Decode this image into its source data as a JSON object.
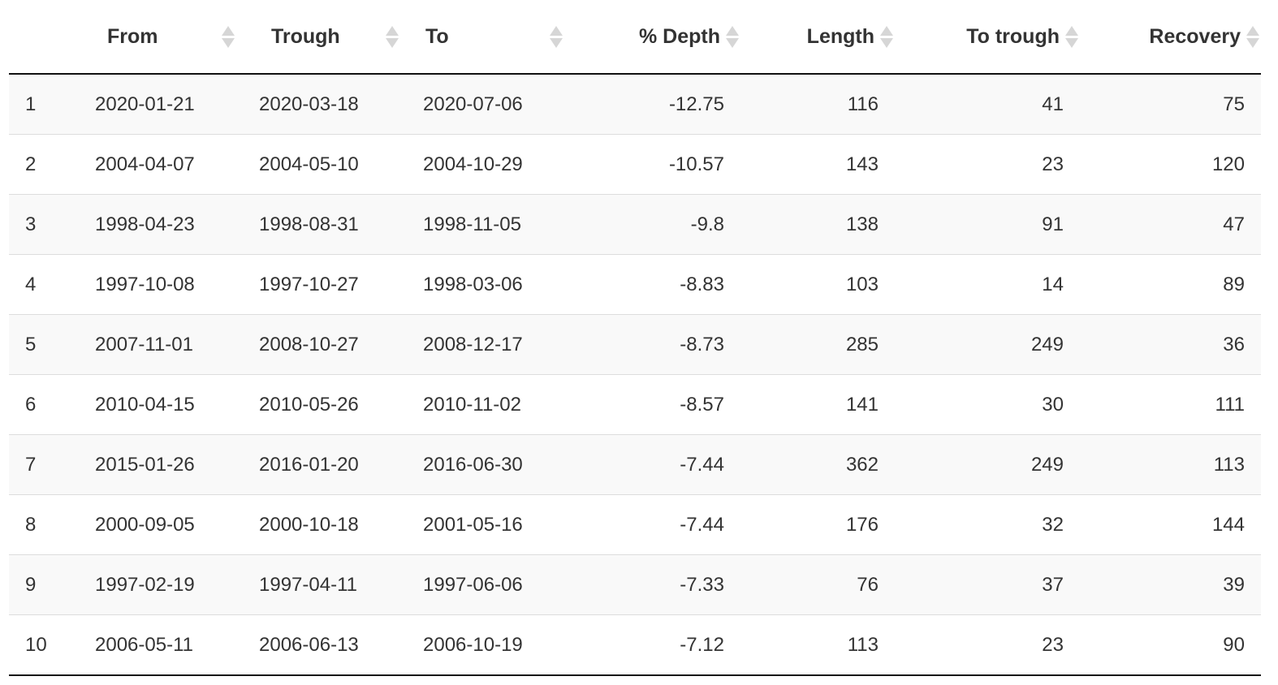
{
  "table": {
    "columns": [
      {
        "key": "row",
        "label": "",
        "sortable": false
      },
      {
        "key": "from",
        "label": "From",
        "sortable": true
      },
      {
        "key": "trough",
        "label": "Trough",
        "sortable": true
      },
      {
        "key": "to",
        "label": "To",
        "sortable": true
      },
      {
        "key": "depth",
        "label": "% Depth",
        "sortable": true
      },
      {
        "key": "length",
        "label": "Length",
        "sortable": true
      },
      {
        "key": "to_trough",
        "label": "To trough",
        "sortable": true
      },
      {
        "key": "recovery",
        "label": "Recovery",
        "sortable": true
      }
    ],
    "rows": [
      [
        "1",
        "2020-01-21",
        "2020-03-18",
        "2020-07-06",
        "-12.75",
        "116",
        "41",
        "75"
      ],
      [
        "2",
        "2004-04-07",
        "2004-05-10",
        "2004-10-29",
        "-10.57",
        "143",
        "23",
        "120"
      ],
      [
        "3",
        "1998-04-23",
        "1998-08-31",
        "1998-11-05",
        "-9.8",
        "138",
        "91",
        "47"
      ],
      [
        "4",
        "1997-10-08",
        "1997-10-27",
        "1998-03-06",
        "-8.83",
        "103",
        "14",
        "89"
      ],
      [
        "5",
        "2007-11-01",
        "2008-10-27",
        "2008-12-17",
        "-8.73",
        "285",
        "249",
        "36"
      ],
      [
        "6",
        "2010-04-15",
        "2010-05-26",
        "2010-11-02",
        "-8.57",
        "141",
        "30",
        "111"
      ],
      [
        "7",
        "2015-01-26",
        "2016-01-20",
        "2016-06-30",
        "-7.44",
        "362",
        "249",
        "113"
      ],
      [
        "8",
        "2000-09-05",
        "2000-10-18",
        "2001-05-16",
        "-7.44",
        "176",
        "32",
        "144"
      ],
      [
        "9",
        "1997-02-19",
        "1997-04-11",
        "1997-06-06",
        "-7.33",
        "76",
        "37",
        "39"
      ],
      [
        "10",
        "2006-05-11",
        "2006-06-13",
        "2006-10-19",
        "-7.12",
        "113",
        "23",
        "90"
      ]
    ]
  },
  "colors": {
    "text": "#333333",
    "header_rule": "#111111",
    "row_rule": "#dddddd",
    "stripe": "#f9f9f9",
    "sort_icon": "#d6d6d6"
  },
  "icons": {
    "sort": "sort-both-icon"
  }
}
